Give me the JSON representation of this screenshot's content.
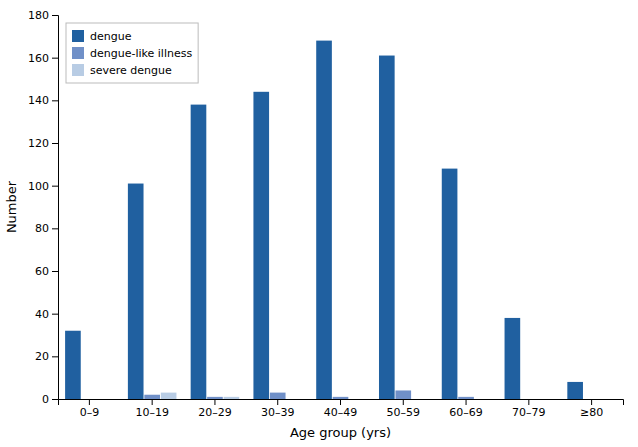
{
  "chart_data": {
    "type": "bar",
    "xlabel": "Age group (yrs)",
    "ylabel": "Number",
    "categories": [
      "0–9",
      "10–19",
      "20–29",
      "30–39",
      "40–49",
      "50–59",
      "60–69",
      "70–79",
      "≥80"
    ],
    "series": [
      {
        "name": "dengue",
        "color": "#2060A0",
        "values": [
          32,
          101,
          138,
          144,
          168,
          161,
          108,
          38,
          8
        ]
      },
      {
        "name": "dengue-like illness",
        "color": "#7090C8",
        "values": [
          0,
          2,
          1,
          3,
          1,
          4,
          1,
          0,
          0
        ]
      },
      {
        "name": "severe dengue",
        "color": "#B8CCE4",
        "values": [
          0,
          3,
          1,
          0,
          0,
          0,
          0,
          0,
          0
        ]
      }
    ],
    "ylim": [
      0,
      180
    ],
    "yticks": [
      0,
      20,
      40,
      60,
      80,
      100,
      120,
      140,
      160,
      180
    ],
    "legend": "upper left",
    "grid": false
  }
}
